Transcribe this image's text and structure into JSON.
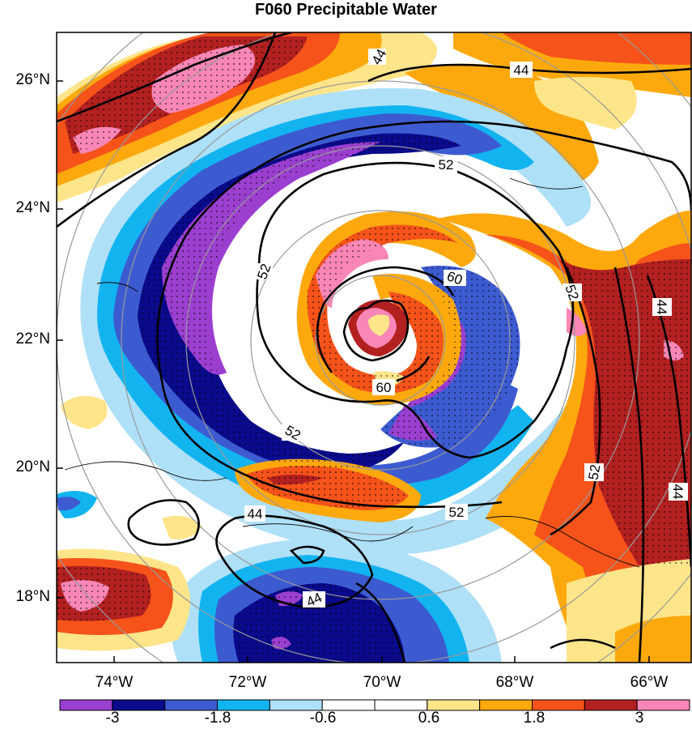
{
  "title": "F060 Precipitable Water",
  "lat_labels": [
    "26°N",
    "24°N",
    "22°N",
    "20°N",
    "18°N"
  ],
  "lon_labels": [
    "74°W",
    "72°W",
    "70°W",
    "68°W",
    "66°W"
  ],
  "colorbar": {
    "tick_labels": [
      "-3",
      "-1.8",
      "-0.6",
      "0.6",
      "1.8",
      "3"
    ],
    "colors": [
      "#9b3fd0",
      "#0a0a8c",
      "#3d5bd1",
      "#12b4f0",
      "#aee0f8",
      "#ffffff",
      "#ffffff",
      "#ffe58a",
      "#fda90e",
      "#f5531a",
      "#b22020",
      "#f886b6"
    ]
  },
  "contour_labels": [
    "44",
    "44",
    "52",
    "52",
    "60",
    "60",
    "52",
    "52",
    "52",
    "44",
    "44",
    "44",
    "44"
  ],
  "colors": {
    "background_shade": "#ffffff",
    "contour_line": "#000000",
    "range_rings": "#999999"
  }
}
